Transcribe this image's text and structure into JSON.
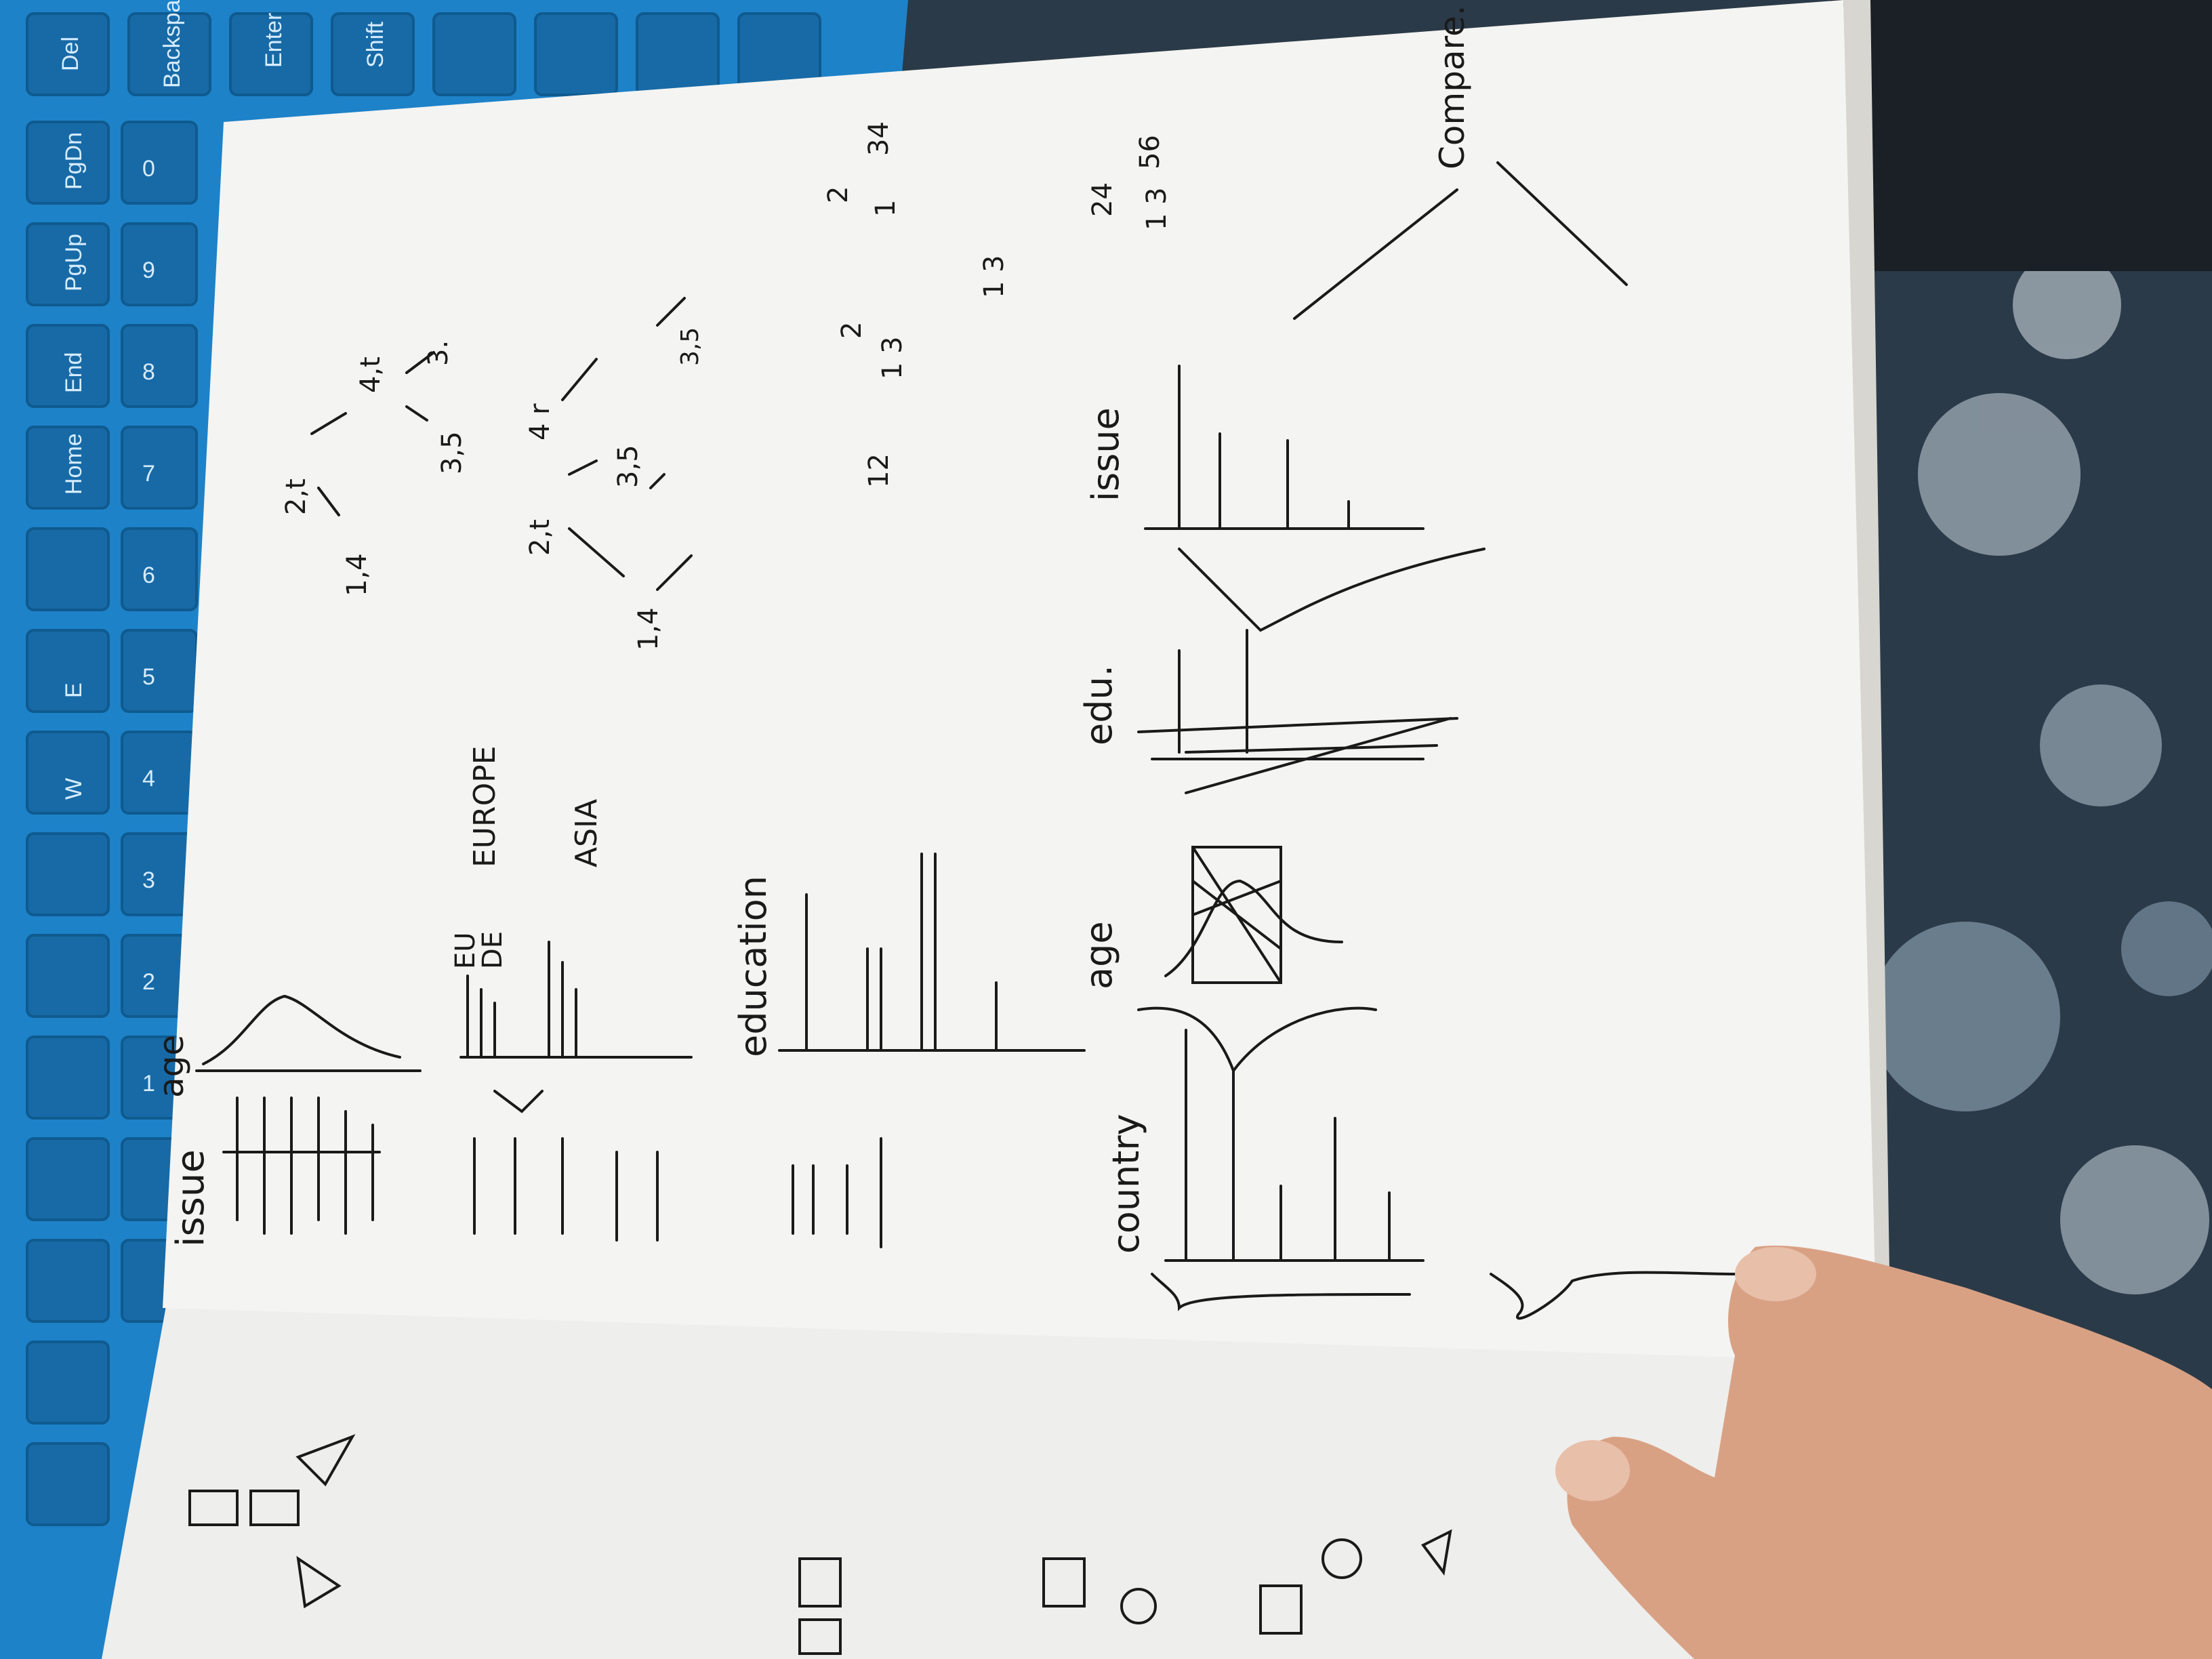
{
  "colors": {
    "keyboard": "#1d82c8",
    "keyboard_dark": "#176aa6",
    "paper": "#f4f4f2",
    "ink": "#1a1a1a",
    "fabric": "#2b3a48",
    "skin": "#d9a184"
  },
  "keyboard": {
    "keys": [
      "Del",
      "Backspace",
      "Enter",
      "Shift",
      "PgDn",
      "PgUp",
      "End",
      "Home",
      "0",
      "9",
      "8",
      "7",
      "6",
      "5",
      "4",
      "3",
      "2",
      "1",
      "W",
      "E"
    ]
  },
  "notes": {
    "left_column_labels": [
      "issue",
      "age"
    ],
    "region_labels": [
      "EU",
      "DE",
      "EUROPE",
      "ASIA"
    ],
    "education_label": "education",
    "tree_numbers_top": [
      "2,t",
      "4,t",
      "1,4",
      "3,5",
      "3."
    ],
    "tree_numbers_mid": [
      "2,t",
      "4 r",
      "1,4",
      "3,5",
      "3,5"
    ],
    "pair_numbers": [
      "12",
      "1",
      "1 3",
      "2",
      "1",
      "2",
      "34"
    ],
    "pair_numbers_2": [
      "1 3",
      "24",
      "1 3",
      "56"
    ],
    "bottom_labels": [
      "country",
      "age",
      "edu.",
      "issue"
    ],
    "compare_label": "Compare."
  }
}
